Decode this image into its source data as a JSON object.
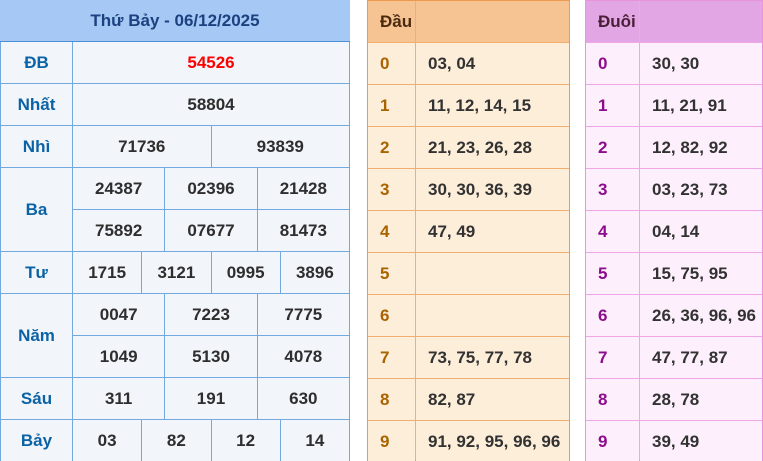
{
  "results": {
    "title": "Thứ Bảy - 06/12/2025",
    "rows": [
      {
        "label": "ĐB",
        "highlight": true,
        "lines": [
          [
            "54526"
          ]
        ]
      },
      {
        "label": "Nhất",
        "highlight": false,
        "lines": [
          [
            "58804"
          ]
        ]
      },
      {
        "label": "Nhì",
        "highlight": false,
        "lines": [
          [
            "71736",
            "93839"
          ]
        ]
      },
      {
        "label": "Ba",
        "highlight": false,
        "lines": [
          [
            "24387",
            "02396",
            "21428"
          ],
          [
            "75892",
            "07677",
            "81473"
          ]
        ]
      },
      {
        "label": "Tư",
        "highlight": false,
        "lines": [
          [
            "1715",
            "3121",
            "0995",
            "3896"
          ]
        ]
      },
      {
        "label": "Năm",
        "highlight": false,
        "lines": [
          [
            "0047",
            "7223",
            "7775"
          ],
          [
            "1049",
            "5130",
            "4078"
          ]
        ]
      },
      {
        "label": "Sáu",
        "highlight": false,
        "lines": [
          [
            "311",
            "191",
            "630"
          ]
        ]
      },
      {
        "label": "Bảy",
        "highlight": false,
        "lines": [
          [
            "03",
            "82",
            "12",
            "14"
          ]
        ]
      }
    ]
  },
  "dau": {
    "header": "Đầu",
    "rows": [
      {
        "digit": "0",
        "values": "03, 04"
      },
      {
        "digit": "1",
        "values": "11, 12, 14, 15"
      },
      {
        "digit": "2",
        "values": "21, 23, 26, 28"
      },
      {
        "digit": "3",
        "values": "30, 30, 36, 39"
      },
      {
        "digit": "4",
        "values": "47, 49"
      },
      {
        "digit": "5",
        "values": ""
      },
      {
        "digit": "6",
        "values": ""
      },
      {
        "digit": "7",
        "values": "73, 75, 77, 78"
      },
      {
        "digit": "8",
        "values": "82, 87"
      },
      {
        "digit": "9",
        "values": "91, 92, 95, 96, 96"
      }
    ]
  },
  "duoi": {
    "header": "Đuôi",
    "rows": [
      {
        "digit": "0",
        "values": "30, 30"
      },
      {
        "digit": "1",
        "values": "11, 21, 91"
      },
      {
        "digit": "2",
        "values": "12, 82, 92"
      },
      {
        "digit": "3",
        "values": "03, 23, 73"
      },
      {
        "digit": "4",
        "values": "04, 14"
      },
      {
        "digit": "5",
        "values": "15, 75, 95"
      },
      {
        "digit": "6",
        "values": "26, 36, 96, 96"
      },
      {
        "digit": "7",
        "values": "47, 77, 87"
      },
      {
        "digit": "8",
        "values": "28, 78"
      },
      {
        "digit": "9",
        "values": "39, 49"
      }
    ]
  },
  "colors": {
    "special_prize": "#fe0000",
    "left_header_bg": "#a5c9f4",
    "left_label": "#0b63a5",
    "dau_header_bg": "#f6c493",
    "dau_digit": "#a96300",
    "duoi_header_bg": "#e1a6e3",
    "duoi_digit": "#8c0d8c"
  }
}
